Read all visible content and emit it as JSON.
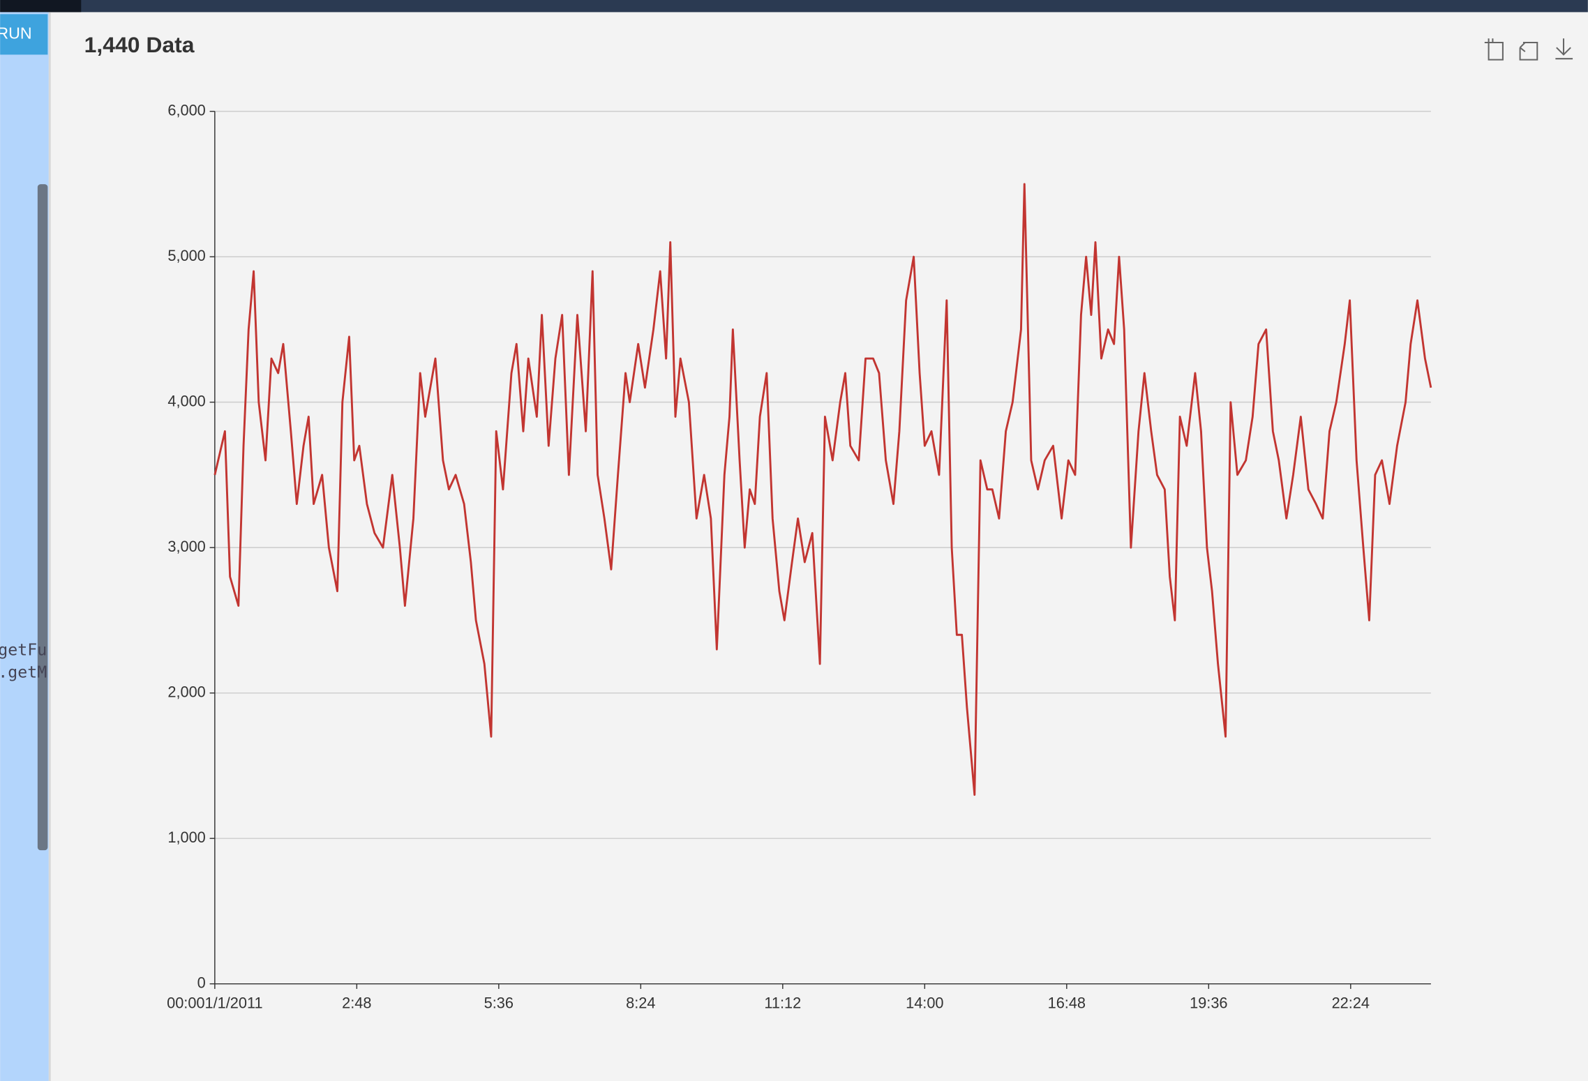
{
  "editor": {
    "run_button": "RUN",
    "code_lines": [
      "getFu",
      ".getM"
    ]
  },
  "chart_data": {
    "type": "line",
    "title": "1,440 Data",
    "x": [
      0,
      12,
      18,
      28,
      34,
      40,
      46,
      52,
      60,
      67,
      75,
      81,
      90,
      97,
      105,
      111,
      117,
      127,
      135,
      145,
      151,
      159,
      165,
      171,
      180,
      189,
      199,
      210,
      219,
      225,
      235,
      243,
      249,
      261,
      270,
      277,
      285,
      295,
      303,
      309,
      319,
      327,
      333,
      341,
      351,
      357,
      365,
      371,
      381,
      387,
      395,
      403,
      411,
      419,
      429,
      439,
      447,
      453,
      461,
      469,
      477,
      486,
      491,
      501,
      509,
      519,
      527,
      534,
      539,
      545,
      551,
      561,
      570,
      579,
      587,
      594,
      603,
      609,
      613,
      621,
      627,
      633,
      639,
      645,
      653,
      660,
      668,
      674,
      683,
      690,
      698,
      707,
      716,
      722,
      731,
      740,
      746,
      752,
      762,
      770,
      779,
      786,
      794,
      803,
      810,
      818,
      827,
      834,
      840,
      848,
      857,
      866,
      872,
      878,
      884,
      890,
      899,
      906,
      914,
      920,
      928,
      936,
      944,
      954,
      958,
      966,
      974,
      982,
      992,
      1002,
      1010,
      1018,
      1025,
      1031,
      1037,
      1042,
      1049,
      1057,
      1064,
      1070,
      1076,
      1084,
      1093,
      1100,
      1108,
      1115,
      1124,
      1130,
      1136,
      1142,
      1150,
      1160,
      1167,
      1174,
      1180,
      1187,
      1196,
      1202,
      1210,
      1220,
      1228,
      1235,
      1244,
      1252,
      1259,
      1268,
      1276,
      1285,
      1294,
      1303,
      1311,
      1319,
      1327,
      1337,
      1343,
      1351,
      1359,
      1366,
      1373,
      1381,
      1390,
      1399,
      1409,
      1415,
      1423,
      1432,
      1439
    ],
    "series": [
      {
        "color": "#c23531",
        "values": [
          3500,
          3800,
          2800,
          2600,
          3700,
          4500,
          4900,
          4000,
          3600,
          4300,
          4200,
          4400,
          3800,
          3300,
          3700,
          3900,
          3300,
          3500,
          3000,
          2700,
          4000,
          4450,
          3600,
          3700,
          3300,
          3100,
          3000,
          3500,
          3000,
          2600,
          3200,
          4200,
          3900,
          4300,
          3600,
          3400,
          3500,
          3300,
          2900,
          2500,
          2200,
          1700,
          3800,
          3400,
          4200,
          4400,
          3800,
          4300,
          3900,
          4600,
          3700,
          4300,
          4600,
          3500,
          4600,
          3800,
          4900,
          3500,
          3200,
          2850,
          3500,
          4200,
          4000,
          4400,
          4100,
          4500,
          4900,
          4300,
          5100,
          3900,
          4300,
          4000,
          3200,
          3500,
          3200,
          2300,
          3500,
          3900,
          4500,
          3600,
          3000,
          3400,
          3300,
          3900,
          4200,
          3200,
          2700,
          2500,
          2900,
          3200,
          2900,
          3100,
          2200,
          3900,
          3600,
          4000,
          4200,
          3700,
          3600,
          4300,
          4300,
          4200,
          3600,
          3300,
          3800,
          4700,
          5000,
          4200,
          3700,
          3800,
          3500,
          4700,
          3000,
          2400,
          2400,
          1900,
          1300,
          3600,
          3400,
          3400,
          3200,
          3800,
          4000,
          4500,
          5500,
          3600,
          3400,
          3600,
          3700,
          3200,
          3600,
          3500,
          4600,
          5000,
          4600,
          5100,
          4300,
          4500,
          4400,
          5000,
          4500,
          3000,
          3800,
          4200,
          3800,
          3500,
          3400,
          2800,
          2500,
          3900,
          3700,
          4200,
          3800,
          3000,
          2700,
          2200,
          1700,
          4000,
          3500,
          3600,
          3900,
          4400,
          4500,
          3800,
          3600,
          3200,
          3500,
          3900,
          3400,
          3300,
          3200,
          3800,
          4000,
          4400,
          4700,
          3600,
          3000,
          2500,
          3500,
          3600,
          3300,
          3700,
          4000,
          4400,
          4700,
          4300,
          4100
        ]
      }
    ],
    "xlim": [
      0,
      1439
    ],
    "xticks": [
      {
        "value": 0,
        "label": "00:001/1/2011"
      },
      {
        "value": 168,
        "label": "2:48"
      },
      {
        "value": 336,
        "label": "5:36"
      },
      {
        "value": 504,
        "label": "8:24"
      },
      {
        "value": 672,
        "label": "11:12"
      },
      {
        "value": 840,
        "label": "14:00"
      },
      {
        "value": 1008,
        "label": "16:48"
      },
      {
        "value": 1176,
        "label": "19:36"
      },
      {
        "value": 1344,
        "label": "22:24"
      }
    ],
    "ylim": [
      0,
      6000
    ],
    "yticks": [
      0,
      {
        "value": 1000,
        "label": "1,000"
      },
      {
        "value": 2000,
        "label": "2,000"
      },
      {
        "value": 3000,
        "label": "3,000"
      },
      {
        "value": 4000,
        "label": "4,000"
      },
      {
        "value": 5000,
        "label": "5,000"
      },
      {
        "value": 6000,
        "label": "6,000"
      }
    ],
    "grid": true
  }
}
